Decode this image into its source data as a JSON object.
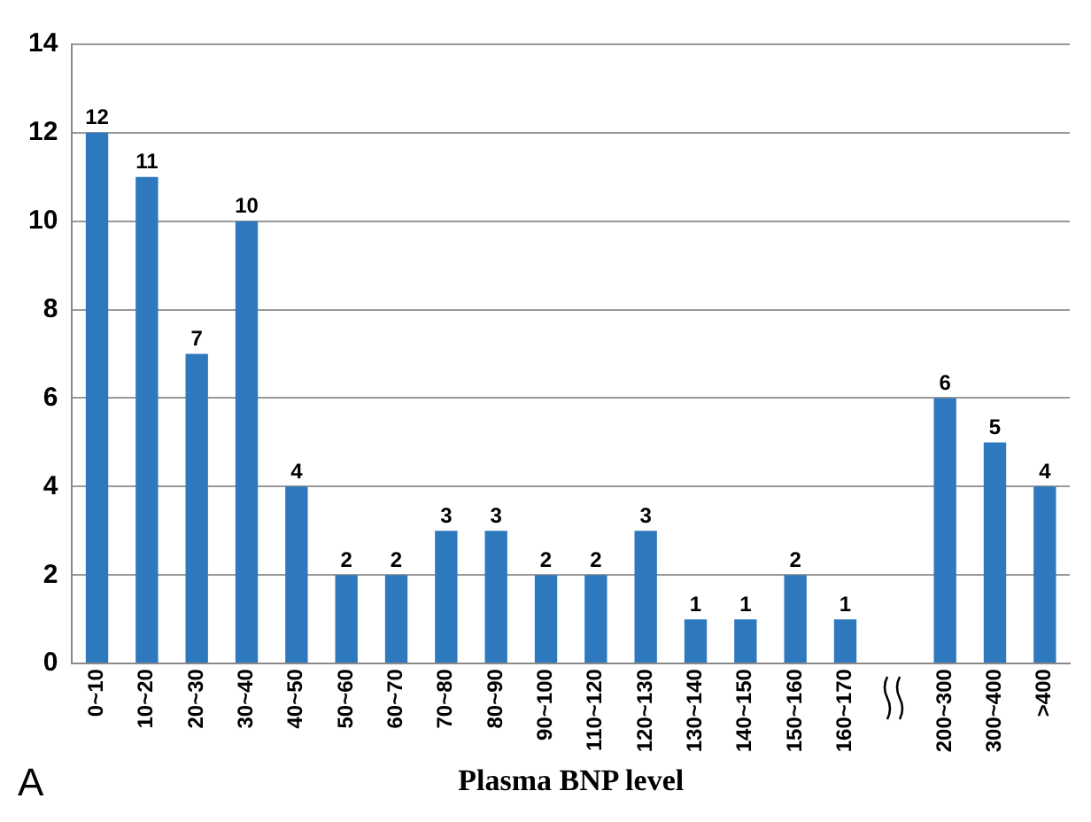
{
  "chart_data": {
    "type": "bar",
    "xlabel": "Plasma BNP level",
    "annotations": [
      "A"
    ],
    "categories": [
      "0~10",
      "10~20",
      "20~30",
      "30~40",
      "40~50",
      "50~60",
      "60~70",
      "70~80",
      "80~90",
      "90~100",
      "110~120",
      "120~130",
      "130~140",
      "140~150",
      "150~160",
      "160~170",
      null,
      "200~300",
      "300~400",
      ">400"
    ],
    "values": [
      12,
      11,
      7,
      10,
      4,
      2,
      2,
      3,
      3,
      2,
      2,
      3,
      1,
      1,
      2,
      1,
      null,
      6,
      5,
      4
    ],
    "color": "#2e78bd",
    "ylim": [
      0,
      14
    ],
    "yticks": [
      0,
      2,
      4,
      6,
      8,
      10,
      12,
      14
    ],
    "grid": "y",
    "data_labels": true,
    "legend": false
  }
}
